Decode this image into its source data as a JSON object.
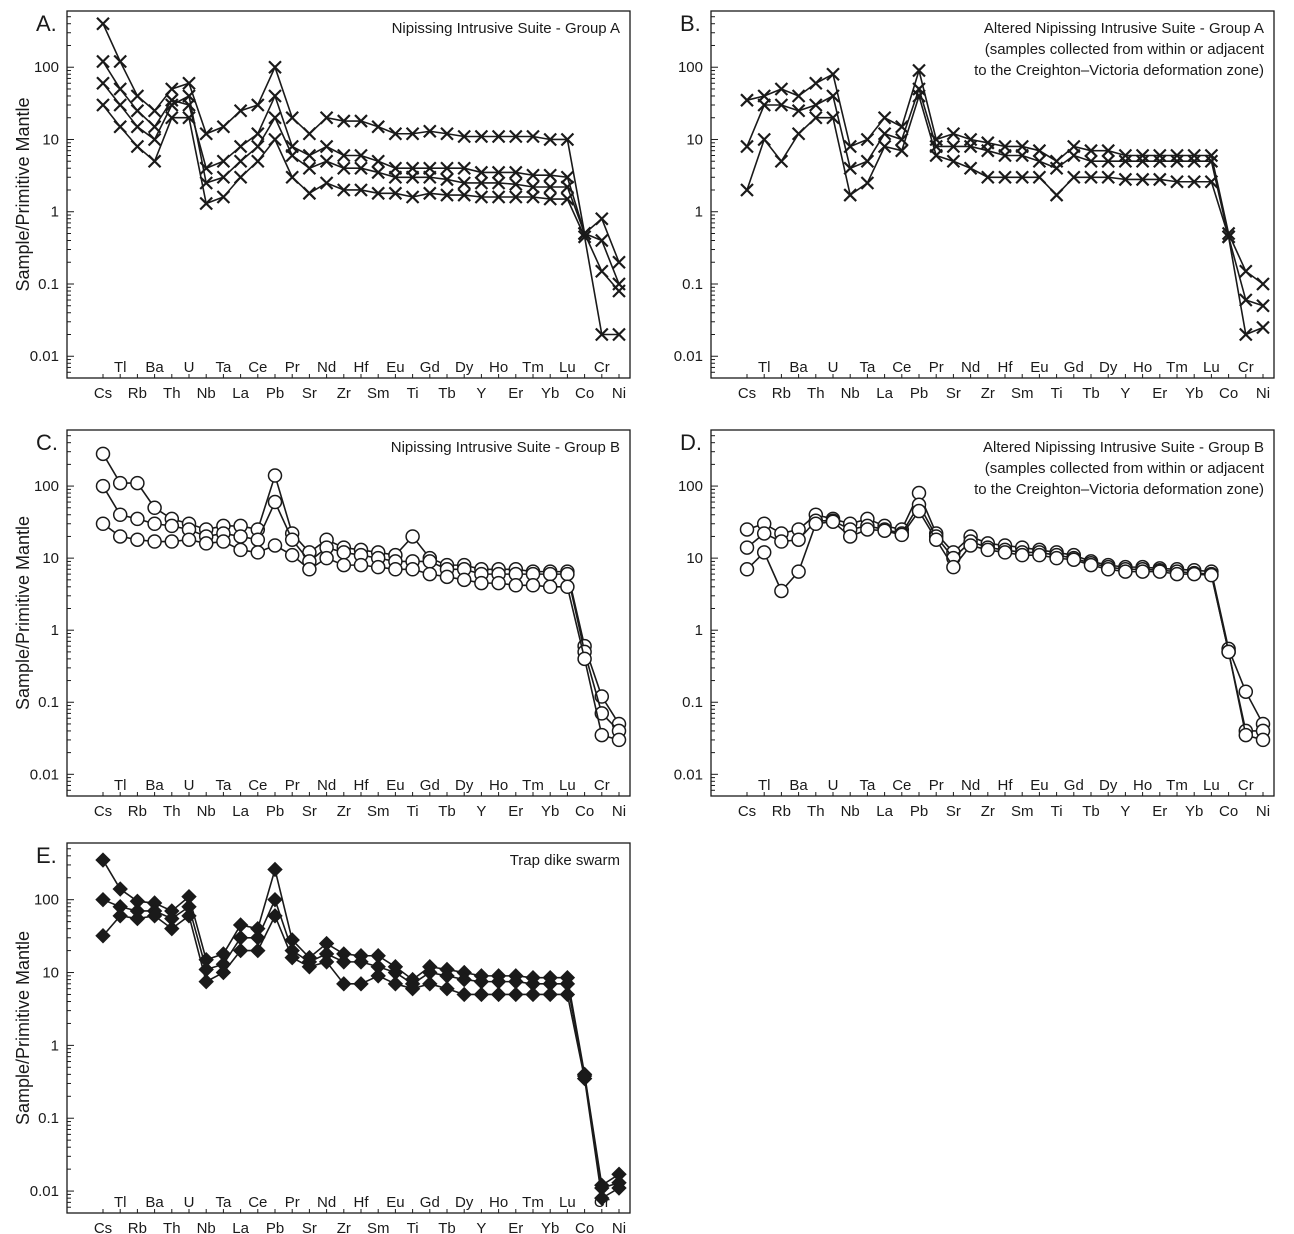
{
  "figure": {
    "ylabel": "Sample/Primitive Mantle",
    "y_ticks": [
      0.01,
      0.1,
      1,
      10,
      100
    ],
    "y_tick_labels": [
      "0.01",
      "0.1",
      "1",
      "10",
      "100"
    ],
    "colors": {
      "ink": "#1a1a1a",
      "background": "#ffffff"
    }
  },
  "chart_data": [
    {
      "panel": "A.",
      "title": "Nipissing Intrusive Suite - Group A",
      "type": "line",
      "marker": "cross",
      "yscale": "log",
      "ylim": [
        0.005,
        600
      ],
      "categories": [
        "Cs",
        "Tl",
        "Rb",
        "Ba",
        "Th",
        "U",
        "Nb",
        "Ta",
        "La",
        "Ce",
        "Pb",
        "Pr",
        "Sr",
        "Nd",
        "Zr",
        "Hf",
        "Sm",
        "Eu",
        "Ti",
        "Gd",
        "Tb",
        "Dy",
        "Y",
        "Ho",
        "Er",
        "Tm",
        "Yb",
        "Lu",
        "Co",
        "Cr",
        "Ni"
      ],
      "series": [
        {
          "values": [
            60,
            30,
            15,
            10,
            30,
            40,
            2.5,
            3,
            5,
            8,
            20,
            6,
            4,
            5,
            4,
            4,
            3.5,
            3,
            3,
            3,
            2.8,
            2.5,
            2.5,
            2.5,
            2.4,
            2.2,
            2.2,
            2.2,
            0.5,
            0.15,
            0.08
          ]
        },
        {
          "values": [
            400,
            120,
            40,
            25,
            50,
            60,
            12,
            15,
            25,
            30,
            100,
            20,
            12,
            20,
            18,
            18,
            15,
            12,
            12,
            13,
            12,
            11,
            11,
            11,
            11,
            11,
            10,
            10,
            0.5,
            0.8,
            0.2
          ]
        },
        {
          "values": [
            30,
            15,
            8,
            5,
            20,
            20,
            1.3,
            1.6,
            3,
            5,
            10,
            3,
            1.8,
            2.5,
            2,
            2,
            1.8,
            1.8,
            1.6,
            1.8,
            1.7,
            1.7,
            1.6,
            1.6,
            1.6,
            1.6,
            1.5,
            1.5,
            0.45,
            0.02,
            0.02
          ]
        },
        {
          "values": [
            120,
            50,
            25,
            15,
            35,
            30,
            4,
            5,
            8,
            12,
            40,
            8,
            6,
            8,
            6,
            6,
            5,
            4,
            4,
            4,
            4,
            4,
            3.5,
            3.5,
            3.5,
            3.2,
            3.2,
            3,
            0.5,
            0.4,
            0.1
          ]
        }
      ]
    },
    {
      "panel": "B.",
      "title": "Altered Nipissing Intrusive Suite - Group A",
      "subtitle": [
        "(samples collected from within or adjacent",
        "to the Creighton–Victoria deformation zone)"
      ],
      "type": "line",
      "marker": "cross",
      "yscale": "log",
      "ylim": [
        0.005,
        600
      ],
      "categories": [
        "Cs",
        "Tl",
        "Rb",
        "Ba",
        "Th",
        "U",
        "Nb",
        "Ta",
        "La",
        "Ce",
        "Pb",
        "Pr",
        "Sr",
        "Nd",
        "Zr",
        "Hf",
        "Sm",
        "Eu",
        "Ti",
        "Gd",
        "Tb",
        "Dy",
        "Y",
        "Ho",
        "Er",
        "Tm",
        "Yb",
        "Lu",
        "Co",
        "Cr",
        "Ni"
      ],
      "series": [
        {
          "values": [
            35,
            40,
            50,
            40,
            60,
            80,
            8,
            10,
            20,
            15,
            90,
            10,
            12,
            10,
            9,
            8,
            8,
            7,
            5,
            8,
            7,
            7,
            6,
            6,
            6,
            6,
            6,
            6,
            0.5,
            0.15,
            0.1
          ]
        },
        {
          "values": [
            8,
            30,
            30,
            25,
            30,
            40,
            4,
            5,
            12,
            10,
            50,
            8,
            8,
            8,
            7,
            6,
            6,
            5,
            4,
            6,
            5,
            5,
            5,
            5,
            5,
            5,
            5,
            5,
            0.45,
            0.06,
            0.05
          ]
        },
        {
          "values": [
            2,
            10,
            5,
            12,
            20,
            20,
            1.7,
            2.5,
            8,
            7,
            40,
            6,
            5,
            4,
            3,
            3,
            3,
            3,
            1.7,
            3,
            3,
            3,
            2.8,
            2.8,
            2.8,
            2.6,
            2.6,
            2.6,
            0.45,
            0.02,
            0.025
          ]
        }
      ]
    },
    {
      "panel": "C.",
      "title": "Nipissing Intrusive Suite - Group B",
      "type": "line",
      "marker": "circle",
      "yscale": "log",
      "ylim": [
        0.005,
        600
      ],
      "categories": [
        "Cs",
        "Tl",
        "Rb",
        "Ba",
        "Th",
        "U",
        "Nb",
        "Ta",
        "La",
        "Ce",
        "Pb",
        "Pr",
        "Sr",
        "Nd",
        "Zr",
        "Hf",
        "Sm",
        "Eu",
        "Ti",
        "Gd",
        "Tb",
        "Dy",
        "Y",
        "Ho",
        "Er",
        "Tm",
        "Yb",
        "Lu",
        "Co",
        "Cr",
        "Ni"
      ],
      "series": [
        {
          "values": [
            280,
            110,
            110,
            50,
            35,
            30,
            25,
            28,
            28,
            25,
            140,
            22,
            12,
            18,
            14,
            13,
            12,
            11,
            20,
            10,
            8,
            8,
            7,
            7,
            7,
            6.5,
            6.5,
            6.5,
            0.6,
            0.12,
            0.05
          ]
        },
        {
          "values": [
            100,
            40,
            35,
            30,
            28,
            25,
            20,
            22,
            20,
            18,
            60,
            18,
            9,
            14,
            12,
            11,
            10,
            9,
            9,
            9,
            7,
            7,
            6,
            6,
            6,
            6,
            6,
            6,
            0.5,
            0.07,
            0.04
          ]
        },
        {
          "values": [
            30,
            20,
            18,
            17,
            17,
            18,
            16,
            17,
            13,
            12,
            15,
            11,
            7,
            10,
            8,
            8,
            7.5,
            7,
            7,
            6,
            5.5,
            5,
            4.5,
            4.5,
            4.2,
            4.2,
            4,
            4,
            0.4,
            0.035,
            0.03
          ]
        }
      ]
    },
    {
      "panel": "D.",
      "title": "Altered Nipissing Intrusive Suite - Group B",
      "subtitle": [
        "(samples collected from within or adjacent",
        "to the Creighton–Victoria deformation zone)"
      ],
      "type": "line",
      "marker": "circle",
      "yscale": "log",
      "ylim": [
        0.005,
        600
      ],
      "categories": [
        "Cs",
        "Tl",
        "Rb",
        "Ba",
        "Th",
        "U",
        "Nb",
        "Ta",
        "La",
        "Ce",
        "Pb",
        "Pr",
        "Sr",
        "Nd",
        "Zr",
        "Hf",
        "Sm",
        "Eu",
        "Ti",
        "Gd",
        "Tb",
        "Dy",
        "Y",
        "Ho",
        "Er",
        "Tm",
        "Yb",
        "Lu",
        "Co",
        "Cr",
        "Ni"
      ],
      "series": [
        {
          "values": [
            25,
            30,
            22,
            25,
            40,
            35,
            30,
            35,
            28,
            25,
            80,
            22,
            12,
            20,
            16,
            15,
            14,
            13,
            12,
            11,
            9,
            8,
            7.5,
            7.5,
            7.2,
            7,
            6.8,
            6.5,
            0.55,
            0.14,
            0.05
          ]
        },
        {
          "values": [
            14,
            22,
            17,
            18,
            33,
            33,
            25,
            28,
            25,
            22,
            55,
            20,
            10,
            17,
            14,
            13,
            12,
            12,
            11,
            10,
            8.5,
            7.5,
            7,
            7,
            6.8,
            6.5,
            6.2,
            6,
            0.5,
            0.04,
            0.04
          ]
        },
        {
          "values": [
            7,
            12,
            3.5,
            6.5,
            30,
            32,
            20,
            25,
            24,
            21,
            45,
            18,
            7.5,
            15,
            13,
            12,
            11,
            11,
            10,
            9.5,
            8,
            7,
            6.5,
            6.5,
            6.5,
            6,
            6,
            5.8,
            0.5,
            0.035,
            0.03
          ]
        }
      ]
    },
    {
      "panel": "E.",
      "title": "Trap dike swarm",
      "type": "line",
      "marker": "diamond",
      "yscale": "log",
      "ylim": [
        0.005,
        600
      ],
      "categories": [
        "Cs",
        "Tl",
        "Rb",
        "Ba",
        "Th",
        "U",
        "Nb",
        "Ta",
        "La",
        "Ce",
        "Pb",
        "Pr",
        "Sr",
        "Nd",
        "Zr",
        "Hf",
        "Sm",
        "Eu",
        "Ti",
        "Gd",
        "Tb",
        "Dy",
        "Y",
        "Ho",
        "Er",
        "Tm",
        "Yb",
        "Lu",
        "Co",
        "Cr",
        "Ni"
      ],
      "series": [
        {
          "values": [
            350,
            140,
            95,
            90,
            70,
            110,
            15,
            18,
            45,
            40,
            260,
            28,
            16,
            25,
            18,
            17,
            17,
            12,
            8,
            12,
            11,
            10,
            9,
            9,
            9,
            8.5,
            8.5,
            8.5,
            0.4,
            0.012,
            0.017
          ]
        },
        {
          "values": [
            100,
            80,
            70,
            70,
            55,
            80,
            11,
            13,
            30,
            30,
            100,
            20,
            14,
            18,
            14,
            14,
            12,
            10,
            7,
            10,
            9,
            8,
            7.5,
            7.5,
            7.5,
            7,
            7,
            7,
            0.38,
            0.011,
            0.013
          ]
        },
        {
          "values": [
            32,
            60,
            55,
            60,
            40,
            60,
            7.5,
            10,
            20,
            20,
            60,
            16,
            12,
            14,
            7,
            7,
            9,
            7,
            6,
            7,
            6,
            5,
            5,
            5,
            5,
            5,
            5,
            5,
            0.35,
            0.008,
            0.011
          ]
        }
      ]
    }
  ]
}
